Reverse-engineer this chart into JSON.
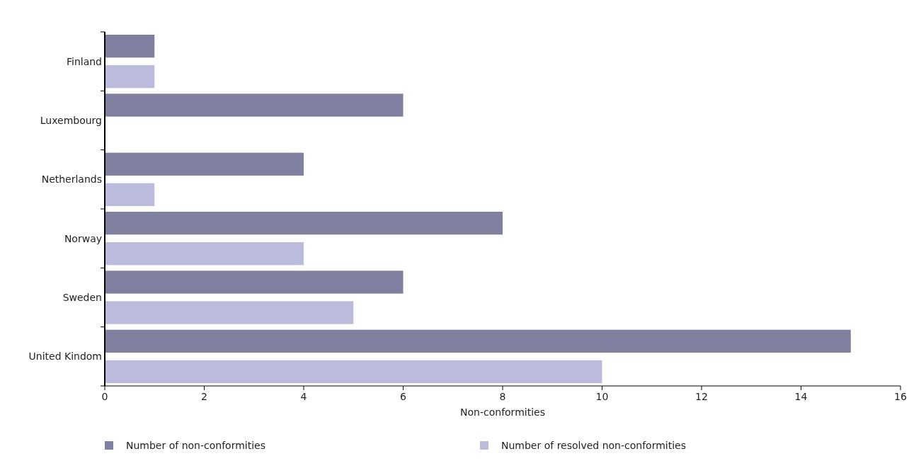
{
  "chart_data": {
    "type": "bar",
    "orientation": "horizontal",
    "xlabel": "Non-conformities",
    "categories": [
      "Finland",
      "Luxembourg",
      "Netherlands",
      "Norway",
      "Sweden",
      "United Kindom"
    ],
    "series": [
      {
        "name": "Number of non-conformities",
        "color": "#7f7f9f",
        "values": [
          1,
          6,
          4,
          8,
          6,
          15
        ]
      },
      {
        "name": "Number of resolved non-conformities",
        "color": "#bbbbdd",
        "values": [
          1,
          0,
          1,
          4,
          5,
          10
        ]
      }
    ],
    "xlim": [
      0,
      16
    ],
    "xticks": [
      0,
      2,
      4,
      6,
      8,
      10,
      12,
      14,
      16
    ],
    "grid": false,
    "legend": "bottom"
  }
}
